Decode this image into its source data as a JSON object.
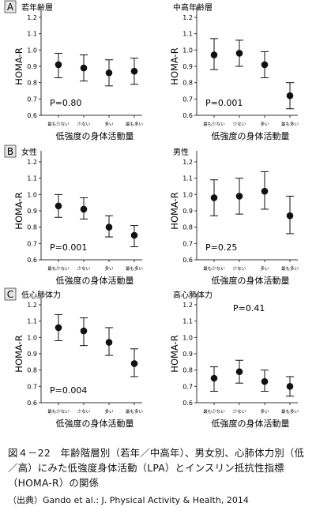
{
  "figure": {
    "caption": "図４－22　年齢階層別（若年／中高年）、男女別、心肺体力別（低／高）にみた低強度身体活動（LPA）とインスリン抵抗性指標（HOMA-R）の関係",
    "source": "（出典）Gando et al.: J. Physical Activity & Health, 2014"
  },
  "colors": {
    "marker": "#111111",
    "axis": "#333333",
    "badge_fill": "#e6e6e6"
  },
  "chart_data": [
    {
      "type": "scatter",
      "row_label": "A",
      "title": "若年齢層",
      "ylabel": "HOMA-R",
      "xlabel": "低強度の身体活動量",
      "categories": [
        "最も少ない",
        "少ない",
        "多い",
        "最も多い"
      ],
      "values": [
        0.91,
        0.89,
        0.86,
        0.87
      ],
      "error_low": [
        0.83,
        0.81,
        0.78,
        0.79
      ],
      "error_high": [
        0.98,
        0.97,
        0.94,
        0.95
      ],
      "annotation": "P=0.80",
      "ylim": [
        0.6,
        1.2
      ],
      "yticks": [
        "0.6",
        "0.7",
        "0.8",
        "0.9",
        "1.0",
        "1.1",
        "1.2"
      ]
    },
    {
      "type": "scatter",
      "row_label": "",
      "title": "中高年齢層",
      "ylabel": "HOMA-R",
      "xlabel": "低強度の身体活動量",
      "categories": [
        "最も少ない",
        "少ない",
        "多い",
        "最も多い"
      ],
      "values": [
        0.97,
        0.98,
        0.91,
        0.72
      ],
      "error_low": [
        0.88,
        0.9,
        0.83,
        0.64
      ],
      "error_high": [
        1.07,
        1.06,
        0.99,
        0.8
      ],
      "annotation": "P=0.001",
      "ylim": [
        0.6,
        1.2
      ],
      "yticks": [
        "0.6",
        "0.7",
        "0.8",
        "0.9",
        "1.0",
        "1.1",
        "1.2"
      ]
    },
    {
      "type": "scatter",
      "row_label": "B",
      "title": "女性",
      "ylabel": "HOMA-R",
      "xlabel": "低強度の身体活動量",
      "categories": [
        "最も少ない",
        "少ない",
        "多い",
        "最も多い"
      ],
      "values": [
        0.93,
        0.91,
        0.8,
        0.75
      ],
      "error_low": [
        0.86,
        0.85,
        0.74,
        0.68
      ],
      "error_high": [
        1.0,
        0.98,
        0.87,
        0.81
      ],
      "annotation": "P=0.001",
      "ylim": [
        0.6,
        1.2
      ],
      "yticks": [
        "0.6",
        "0.7",
        "0.8",
        "0.9",
        "1.0",
        "1.1",
        "1.2"
      ]
    },
    {
      "type": "scatter",
      "row_label": "",
      "title": "男性",
      "ylabel": "HOMA-R",
      "xlabel": "低強度の身体活動量",
      "categories": [
        "最も少ない",
        "少ない",
        "多い",
        "最も多い"
      ],
      "values": [
        0.98,
        0.99,
        1.02,
        0.87
      ],
      "error_low": [
        0.87,
        0.88,
        0.91,
        0.76
      ],
      "error_high": [
        1.09,
        1.1,
        1.14,
        0.99
      ],
      "annotation": "P=0.25",
      "ylim": [
        0.6,
        1.2
      ],
      "yticks": [
        "0.6",
        "0.7",
        "0.8",
        "0.9",
        "1.0",
        "1.1",
        "1.2"
      ]
    },
    {
      "type": "scatter",
      "row_label": "C",
      "title": "低心肺体力",
      "ylabel": "HOMA-R",
      "xlabel": "低強度の身体活動量",
      "categories": [
        "最も少ない",
        "少ない",
        "多い",
        "最も多い"
      ],
      "values": [
        1.06,
        1.04,
        0.97,
        0.84
      ],
      "error_low": [
        0.98,
        0.95,
        0.89,
        0.76
      ],
      "error_high": [
        1.14,
        1.12,
        1.06,
        0.93
      ],
      "annotation": "P=0.004",
      "ylim": [
        0.6,
        1.2
      ],
      "yticks": [
        "0.6",
        "0.7",
        "0.8",
        "0.9",
        "1.0",
        "1.1",
        "1.2"
      ]
    },
    {
      "type": "scatter",
      "row_label": "",
      "title": "高心肺体力",
      "ylabel": "HOMA-R",
      "xlabel": "低強度の身体活動量",
      "categories": [
        "最も少ない",
        "少ない",
        "多い",
        "最も多い"
      ],
      "values": [
        0.75,
        0.79,
        0.73,
        0.7
      ],
      "error_low": [
        0.67,
        0.72,
        0.67,
        0.64
      ],
      "error_high": [
        0.82,
        0.86,
        0.8,
        0.76
      ],
      "annotation": "P=0.41",
      "ylim": [
        0.6,
        1.2
      ],
      "yticks": [
        "0.6",
        "0.7",
        "0.8",
        "0.9",
        "1.0",
        "1.1",
        "1.2"
      ]
    }
  ]
}
